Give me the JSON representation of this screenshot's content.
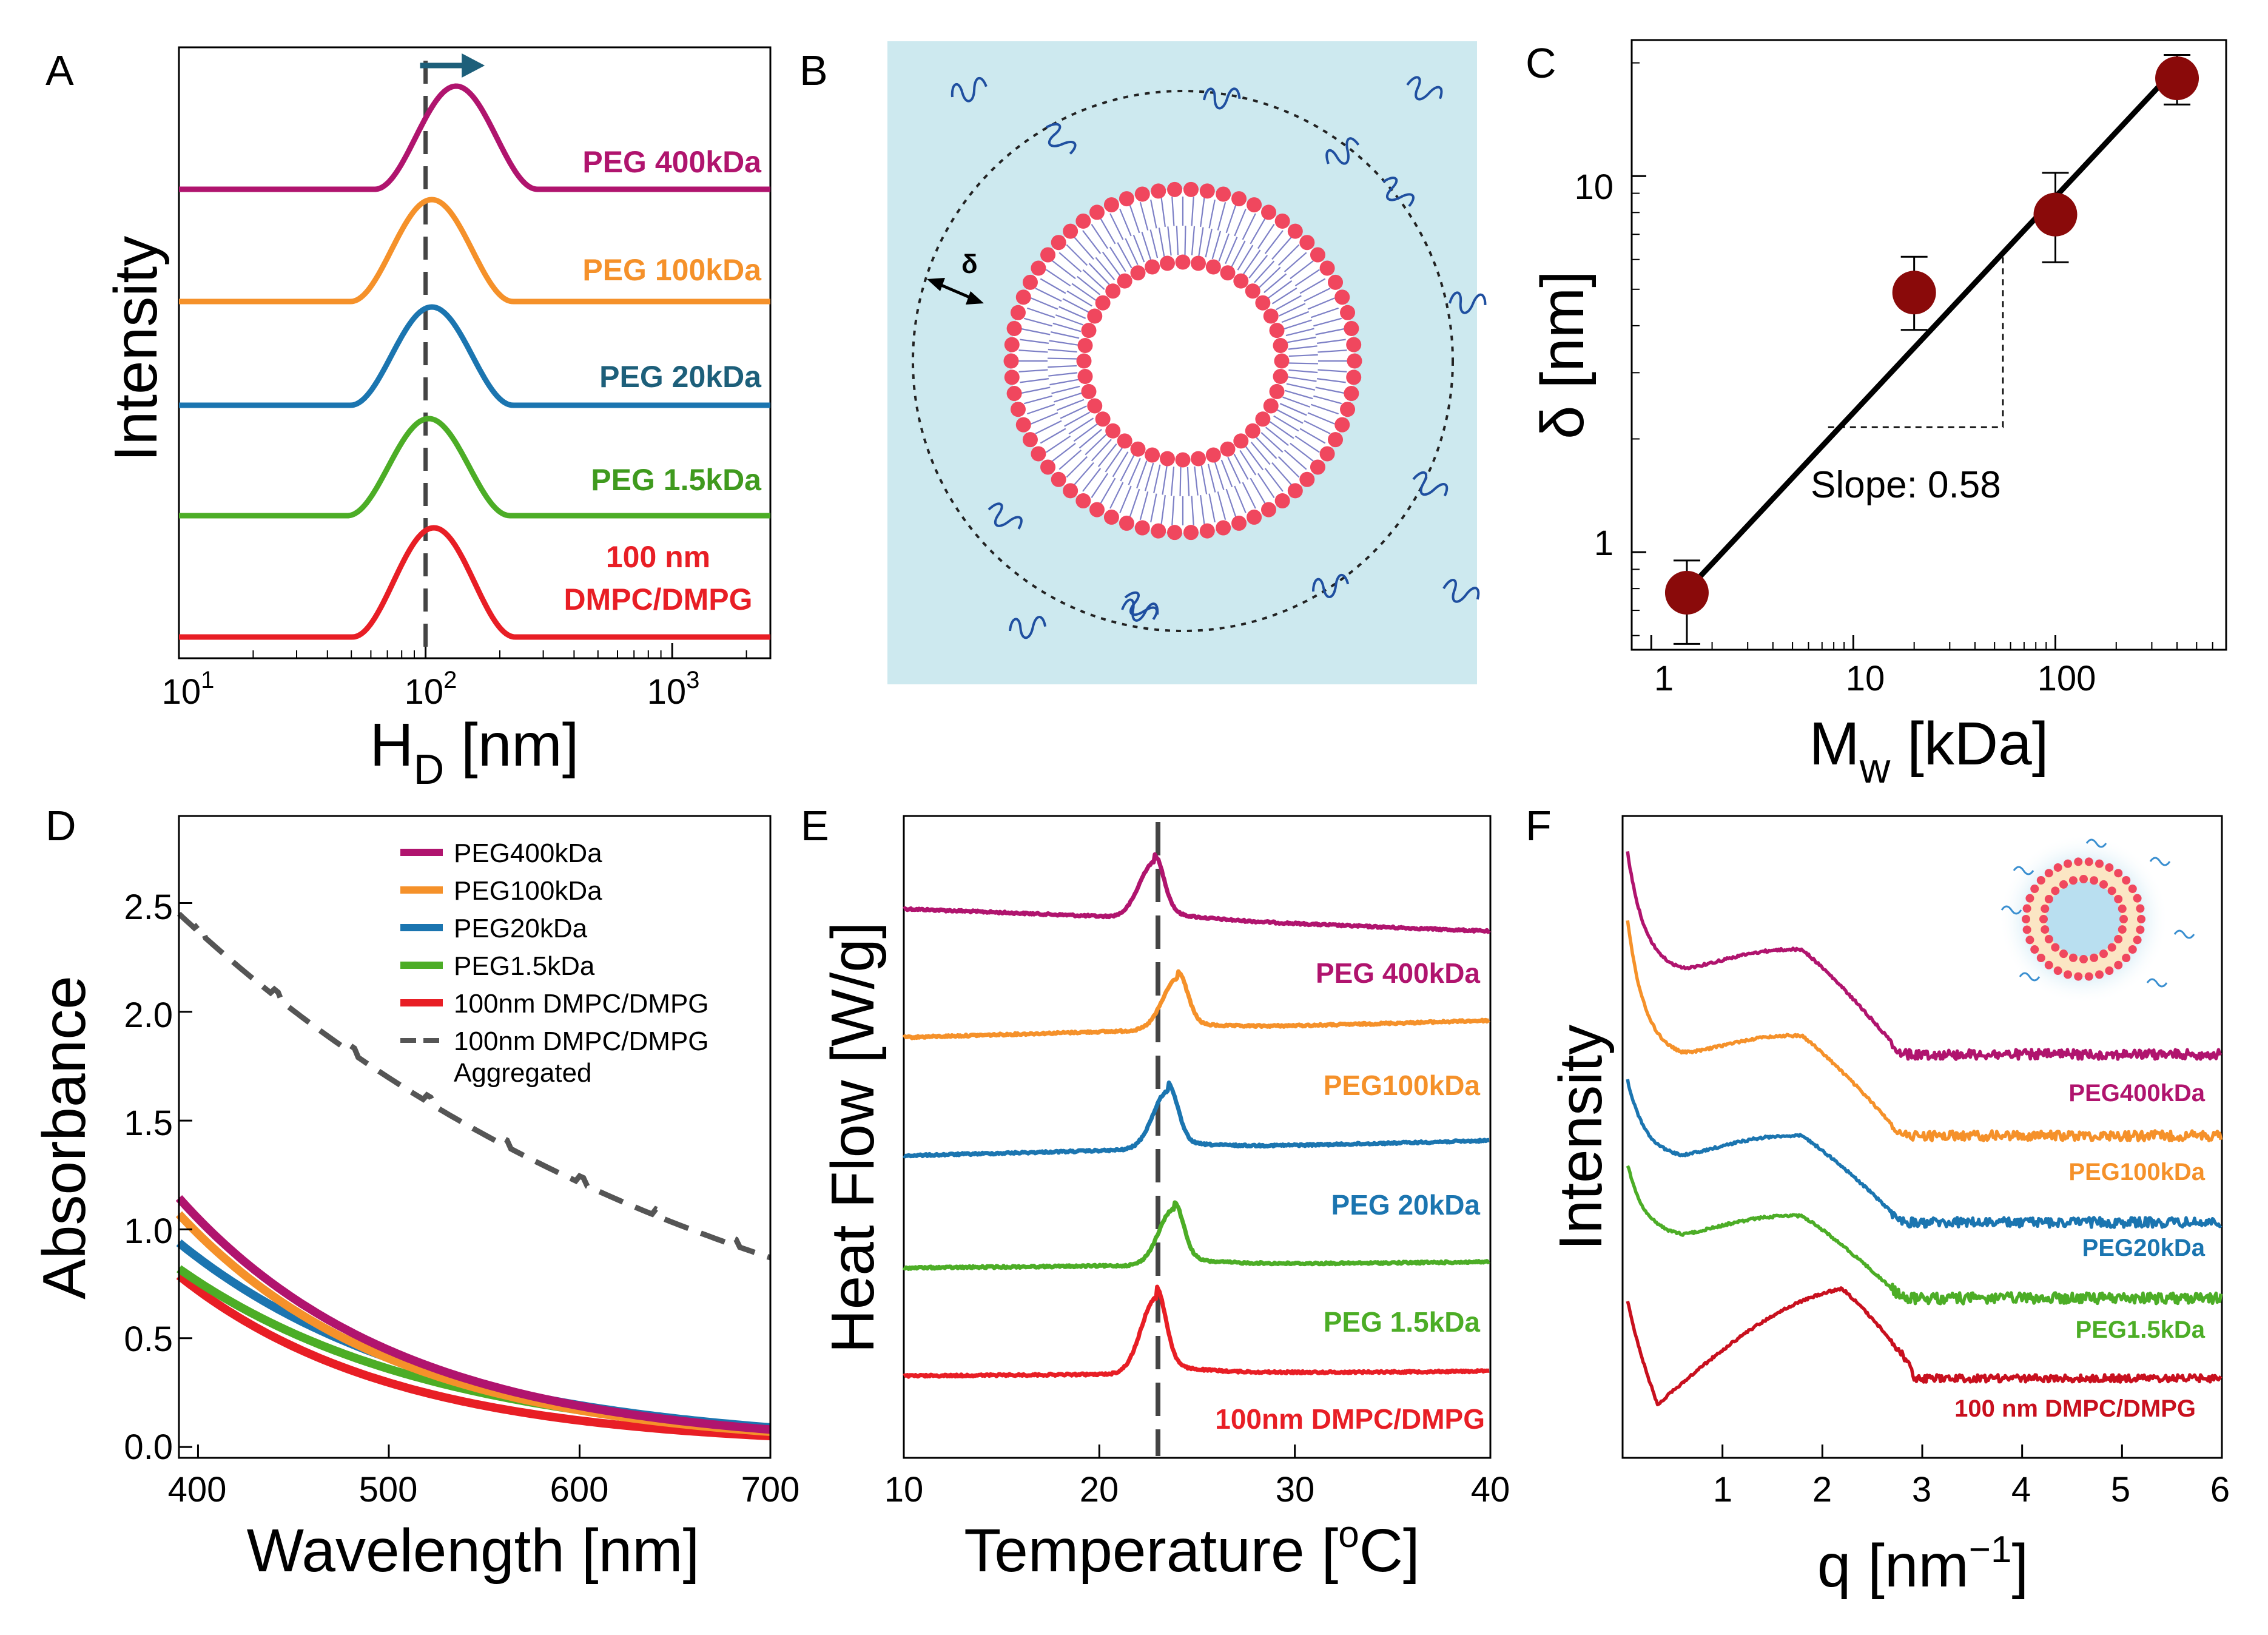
{
  "colors": {
    "peg400": "#b0146e",
    "peg100": "#f5912a",
    "peg20": "#1b75b0",
    "peg15": "#4cad26",
    "dmpc": "#e81e25",
    "dmpcF": "#c8101e",
    "aggregated": "#555555",
    "arrow": "#1d5f7a",
    "point": "#8a0a0a",
    "bg": "#cde9ef",
    "lipid": "#f0475e",
    "tail": "#7d80c6",
    "peg_chain": "#1f4fa0"
  },
  "chart_data": [
    {
      "panel": "A",
      "type": "line",
      "xlabel": "H",
      "xlabel_sub": "D",
      "xlabel_unit": " [nm]",
      "ylabel": "Intensity",
      "xscale": "log",
      "xlim": [
        10,
        2500
      ],
      "xtick_base": "10",
      "xtick_exp": [
        "1",
        "2",
        "3"
      ],
      "series": [
        {
          "name": "PEG 400kDa",
          "center": 133,
          "color_key": "peg400"
        },
        {
          "name": "PEG 100kDa",
          "center": 106,
          "color_key": "peg100"
        },
        {
          "name": "PEG 20kDa",
          "center": 106,
          "color_key": "peg20"
        },
        {
          "name": "PEG 1.5kDa",
          "center": 103,
          "color_key": "peg15"
        },
        {
          "name": "100 nm DMPC/DMPG",
          "center": 108,
          "color_key": "dmpc"
        }
      ],
      "series_labels": [
        "PEG 400kDa",
        "PEG 100kDa",
        "PEG 20kDa",
        "PEG 1.5kDa",
        "100 nm",
        "DMPC/DMPG"
      ],
      "reference_line_x": 100
    },
    {
      "panel": "B",
      "type": "schematic",
      "annotation": "δ"
    },
    {
      "panel": "C",
      "type": "scatter",
      "xlabel": "M",
      "xlabel_sub": "w",
      "xlabel_unit": " [kDa]",
      "ylabel": "δ [nm]",
      "xscale": "log",
      "yscale": "log",
      "xlim": [
        0.8,
        700
      ],
      "ylim": [
        0.55,
        23
      ],
      "xticks": [
        "1",
        "10",
        "100"
      ],
      "yticks": [
        "1",
        "10"
      ],
      "x": [
        1.5,
        20,
        100,
        400
      ],
      "y": [
        0.78,
        4.9,
        7.9,
        18.2
      ],
      "y_err_low": [
        0.57,
        3.9,
        5.9,
        15.5
      ],
      "y_err_high": [
        0.95,
        6.1,
        10.2,
        21.0
      ],
      "fit_slope": 0.58,
      "fit_x": [
        1.5,
        400
      ],
      "fit_y": [
        0.79,
        19.5
      ],
      "annotation": "Slope: 0.58"
    },
    {
      "panel": "D",
      "type": "line",
      "xlabel": "Wavelength [nm]",
      "ylabel": "Absorbance",
      "xlim": [
        390,
        700
      ],
      "ylim": [
        -0.05,
        2.9
      ],
      "xticks": [
        "400",
        "500",
        "600",
        "700"
      ],
      "yticks": [
        "0.0",
        "0.5",
        "1.0",
        "1.5",
        "2.0",
        "2.5"
      ],
      "series": [
        {
          "name": "PEG400kDa",
          "y400": 1.05,
          "y700": 0.08,
          "color_key": "peg400"
        },
        {
          "name": "PEG100kDa",
          "y400": 0.98,
          "y700": 0.07,
          "color_key": "peg100"
        },
        {
          "name": "PEG20kDa",
          "y400": 0.87,
          "y700": 0.09,
          "color_key": "peg20"
        },
        {
          "name": "PEG1.5kDa",
          "y400": 0.76,
          "y700": 0.08,
          "color_key": "peg15"
        },
        {
          "name": "100nm DMPC/DMPG",
          "y400": 0.72,
          "y700": 0.05,
          "color_key": "dmpc"
        },
        {
          "name": "100nm DMPC/DMPG Aggregated",
          "y400": 2.37,
          "y700": 0.87,
          "dashed": true,
          "color_key": "aggregated"
        }
      ],
      "legend": [
        "PEG400kDa",
        "PEG100kDa",
        "PEG20kDa",
        "PEG1.5kDa",
        "100nm DMPC/DMPG",
        "100nm DMPC/DMPG",
        "Aggregated"
      ]
    },
    {
      "panel": "E",
      "type": "line",
      "xlabel": "Temperature [",
      "xlabel_sup": "o",
      "xlabel_end": "C]",
      "ylabel": "Heat Flow [W/g]",
      "xlim": [
        10,
        40
      ],
      "xticks": [
        "10",
        "20",
        "30",
        "40"
      ],
      "series": [
        {
          "name": "PEG 400kDa",
          "peak": 22.8,
          "color_key": "peg400"
        },
        {
          "name": "PEG100kDa",
          "peak": 24.0,
          "color_key": "peg100"
        },
        {
          "name": "PEG 20kDa",
          "peak": 23.5,
          "color_key": "peg20"
        },
        {
          "name": "PEG 1.5kDa",
          "peak": 23.8,
          "color_key": "peg15"
        },
        {
          "name": "100nm DMPC/DMPG",
          "peak": 22.9,
          "color_key": "dmpc"
        }
      ],
      "series_labels": [
        "PEG 400kDa",
        "PEG100kDa",
        "PEG 20kDa",
        "PEG 1.5kDa",
        "100nm DMPC/DMPG"
      ],
      "reference_line_x": 23
    },
    {
      "panel": "F",
      "type": "line",
      "xlabel": "q [nm",
      "xlabel_sup": "−1",
      "xlabel_end": "]",
      "ylabel": "Intensity",
      "xlim": [
        0,
        6
      ],
      "xticks": [
        "1",
        "2",
        "3",
        "4",
        "5",
        "6"
      ],
      "series": [
        {
          "name": "PEG400kDa",
          "color_key": "peg400"
        },
        {
          "name": "PEG100kDa",
          "color_key": "peg100"
        },
        {
          "name": "PEG20kDa",
          "color_key": "peg20"
        },
        {
          "name": "PEG1.5kDa",
          "color_key": "peg15"
        },
        {
          "name": "100 nm DMPC/DMPG",
          "color_key": "dmpcF"
        }
      ],
      "series_labels": [
        "PEG400kDa",
        "PEG100kDa",
        "PEG20kDa",
        "PEG1.5kDa",
        "100 nm DMPC/DMPG"
      ]
    }
  ],
  "panel_letters": [
    "A",
    "B",
    "C",
    "D",
    "E",
    "F"
  ]
}
